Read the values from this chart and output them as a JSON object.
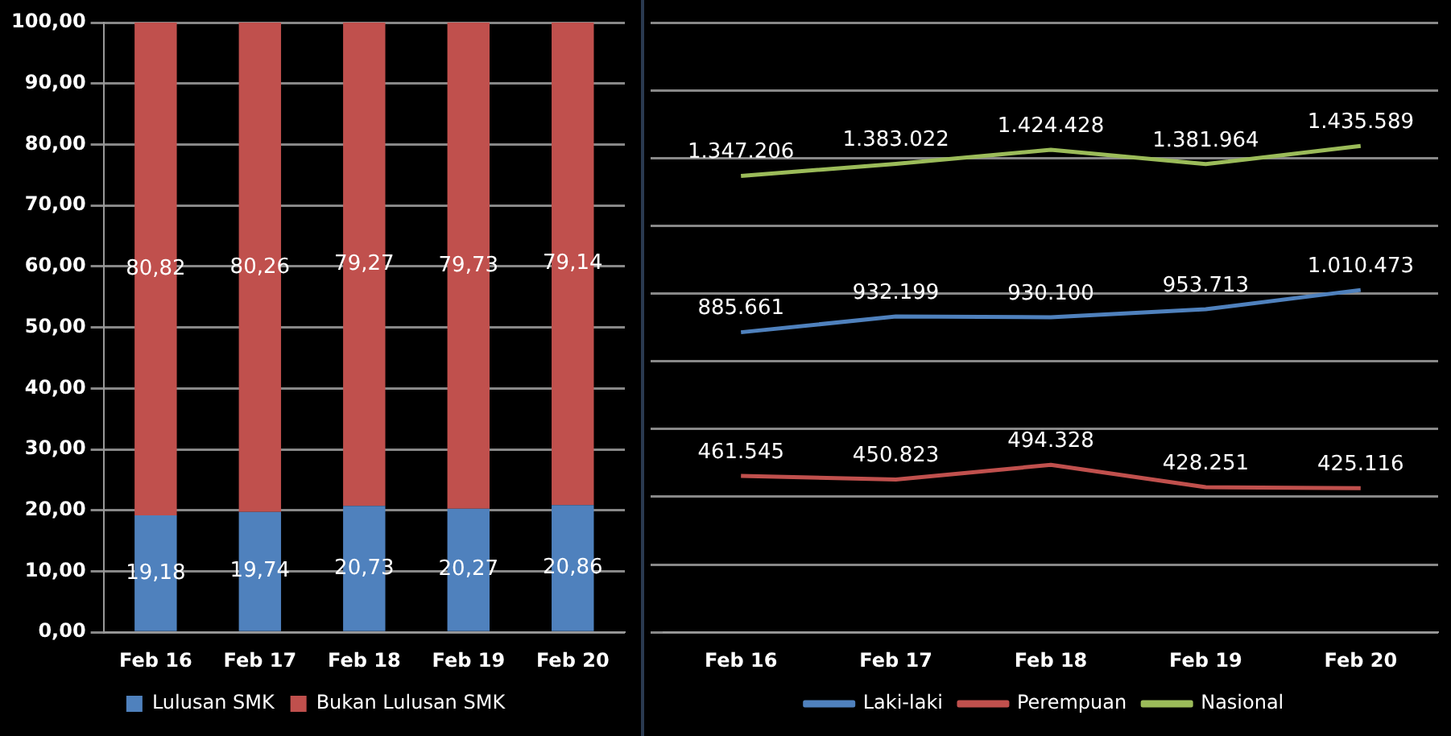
{
  "chart_data": [
    {
      "type": "bar",
      "stacked": true,
      "categories": [
        "Feb 16",
        "Feb 17",
        "Feb 18",
        "Feb 19",
        "Feb 20"
      ],
      "series": [
        {
          "name": "Lulusan SMK",
          "color": "#4f81bd",
          "values": [
            19.18,
            19.74,
            20.73,
            20.27,
            20.86
          ],
          "value_labels": [
            "19,18",
            "19,74",
            "20,73",
            "20,27",
            "20,86"
          ]
        },
        {
          "name": "Bukan Lulusan SMK",
          "color": "#c0504d",
          "values": [
            80.82,
            80.26,
            79.27,
            79.73,
            79.14
          ],
          "value_labels": [
            "80,82",
            "80,26",
            "79,27",
            "79,73",
            "79,14"
          ]
        }
      ],
      "ylim": [
        0,
        100
      ],
      "yticks": [
        {
          "value": 0,
          "label": "0,00"
        },
        {
          "value": 10,
          "label": "10,00"
        },
        {
          "value": 20,
          "label": "20,00"
        },
        {
          "value": 30,
          "label": "30,00"
        },
        {
          "value": 40,
          "label": "40,00"
        },
        {
          "value": 50,
          "label": "50,00"
        },
        {
          "value": 60,
          "label": "60,00"
        },
        {
          "value": 70,
          "label": "70,00"
        },
        {
          "value": 80,
          "label": "80,00"
        },
        {
          "value": 90,
          "label": "90,00"
        },
        {
          "value": 100,
          "label": "100,00"
        }
      ],
      "grid": "y",
      "legend": "bottom"
    },
    {
      "type": "line",
      "categories": [
        "Feb 16",
        "Feb 17",
        "Feb 18",
        "Feb 19",
        "Feb 20"
      ],
      "series": [
        {
          "name": "Laki-laki",
          "color": "#4f81bd",
          "values": [
            885661,
            932199,
            930100,
            953713,
            1010473
          ],
          "value_labels": [
            "885.661",
            "932.199",
            "930.100",
            "953.713",
            "1.010.473"
          ]
        },
        {
          "name": "Perempuan",
          "color": "#c0504d",
          "values": [
            461545,
            450823,
            494328,
            428251,
            425116
          ],
          "value_labels": [
            "461.545",
            "450.823",
            "494.328",
            "428.251",
            "425.116"
          ]
        },
        {
          "name": "Nasional",
          "color": "#9bbb59",
          "values": [
            1347206,
            1383022,
            1424428,
            1381964,
            1435589
          ],
          "value_labels": [
            "1.347.206",
            "1.383.022",
            "1.424.428",
            "1.381.964",
            "1.435.589"
          ]
        }
      ],
      "ylim": [
        0,
        1800000
      ],
      "yticks": [
        {
          "value": 0,
          "label": null
        },
        {
          "value": 200000,
          "label": null
        },
        {
          "value": 400000,
          "label": null
        },
        {
          "value": 600000,
          "label": null
        },
        {
          "value": 800000,
          "label": null
        },
        {
          "value": 1000000,
          "label": null
        },
        {
          "value": 1200000,
          "label": null
        },
        {
          "value": 1400000,
          "label": null
        },
        {
          "value": 1600000,
          "label": null
        },
        {
          "value": 1800000,
          "label": null
        }
      ],
      "grid": "y",
      "legend": "bottom",
      "tick_labels": "x",
      "marker": "none"
    }
  ]
}
